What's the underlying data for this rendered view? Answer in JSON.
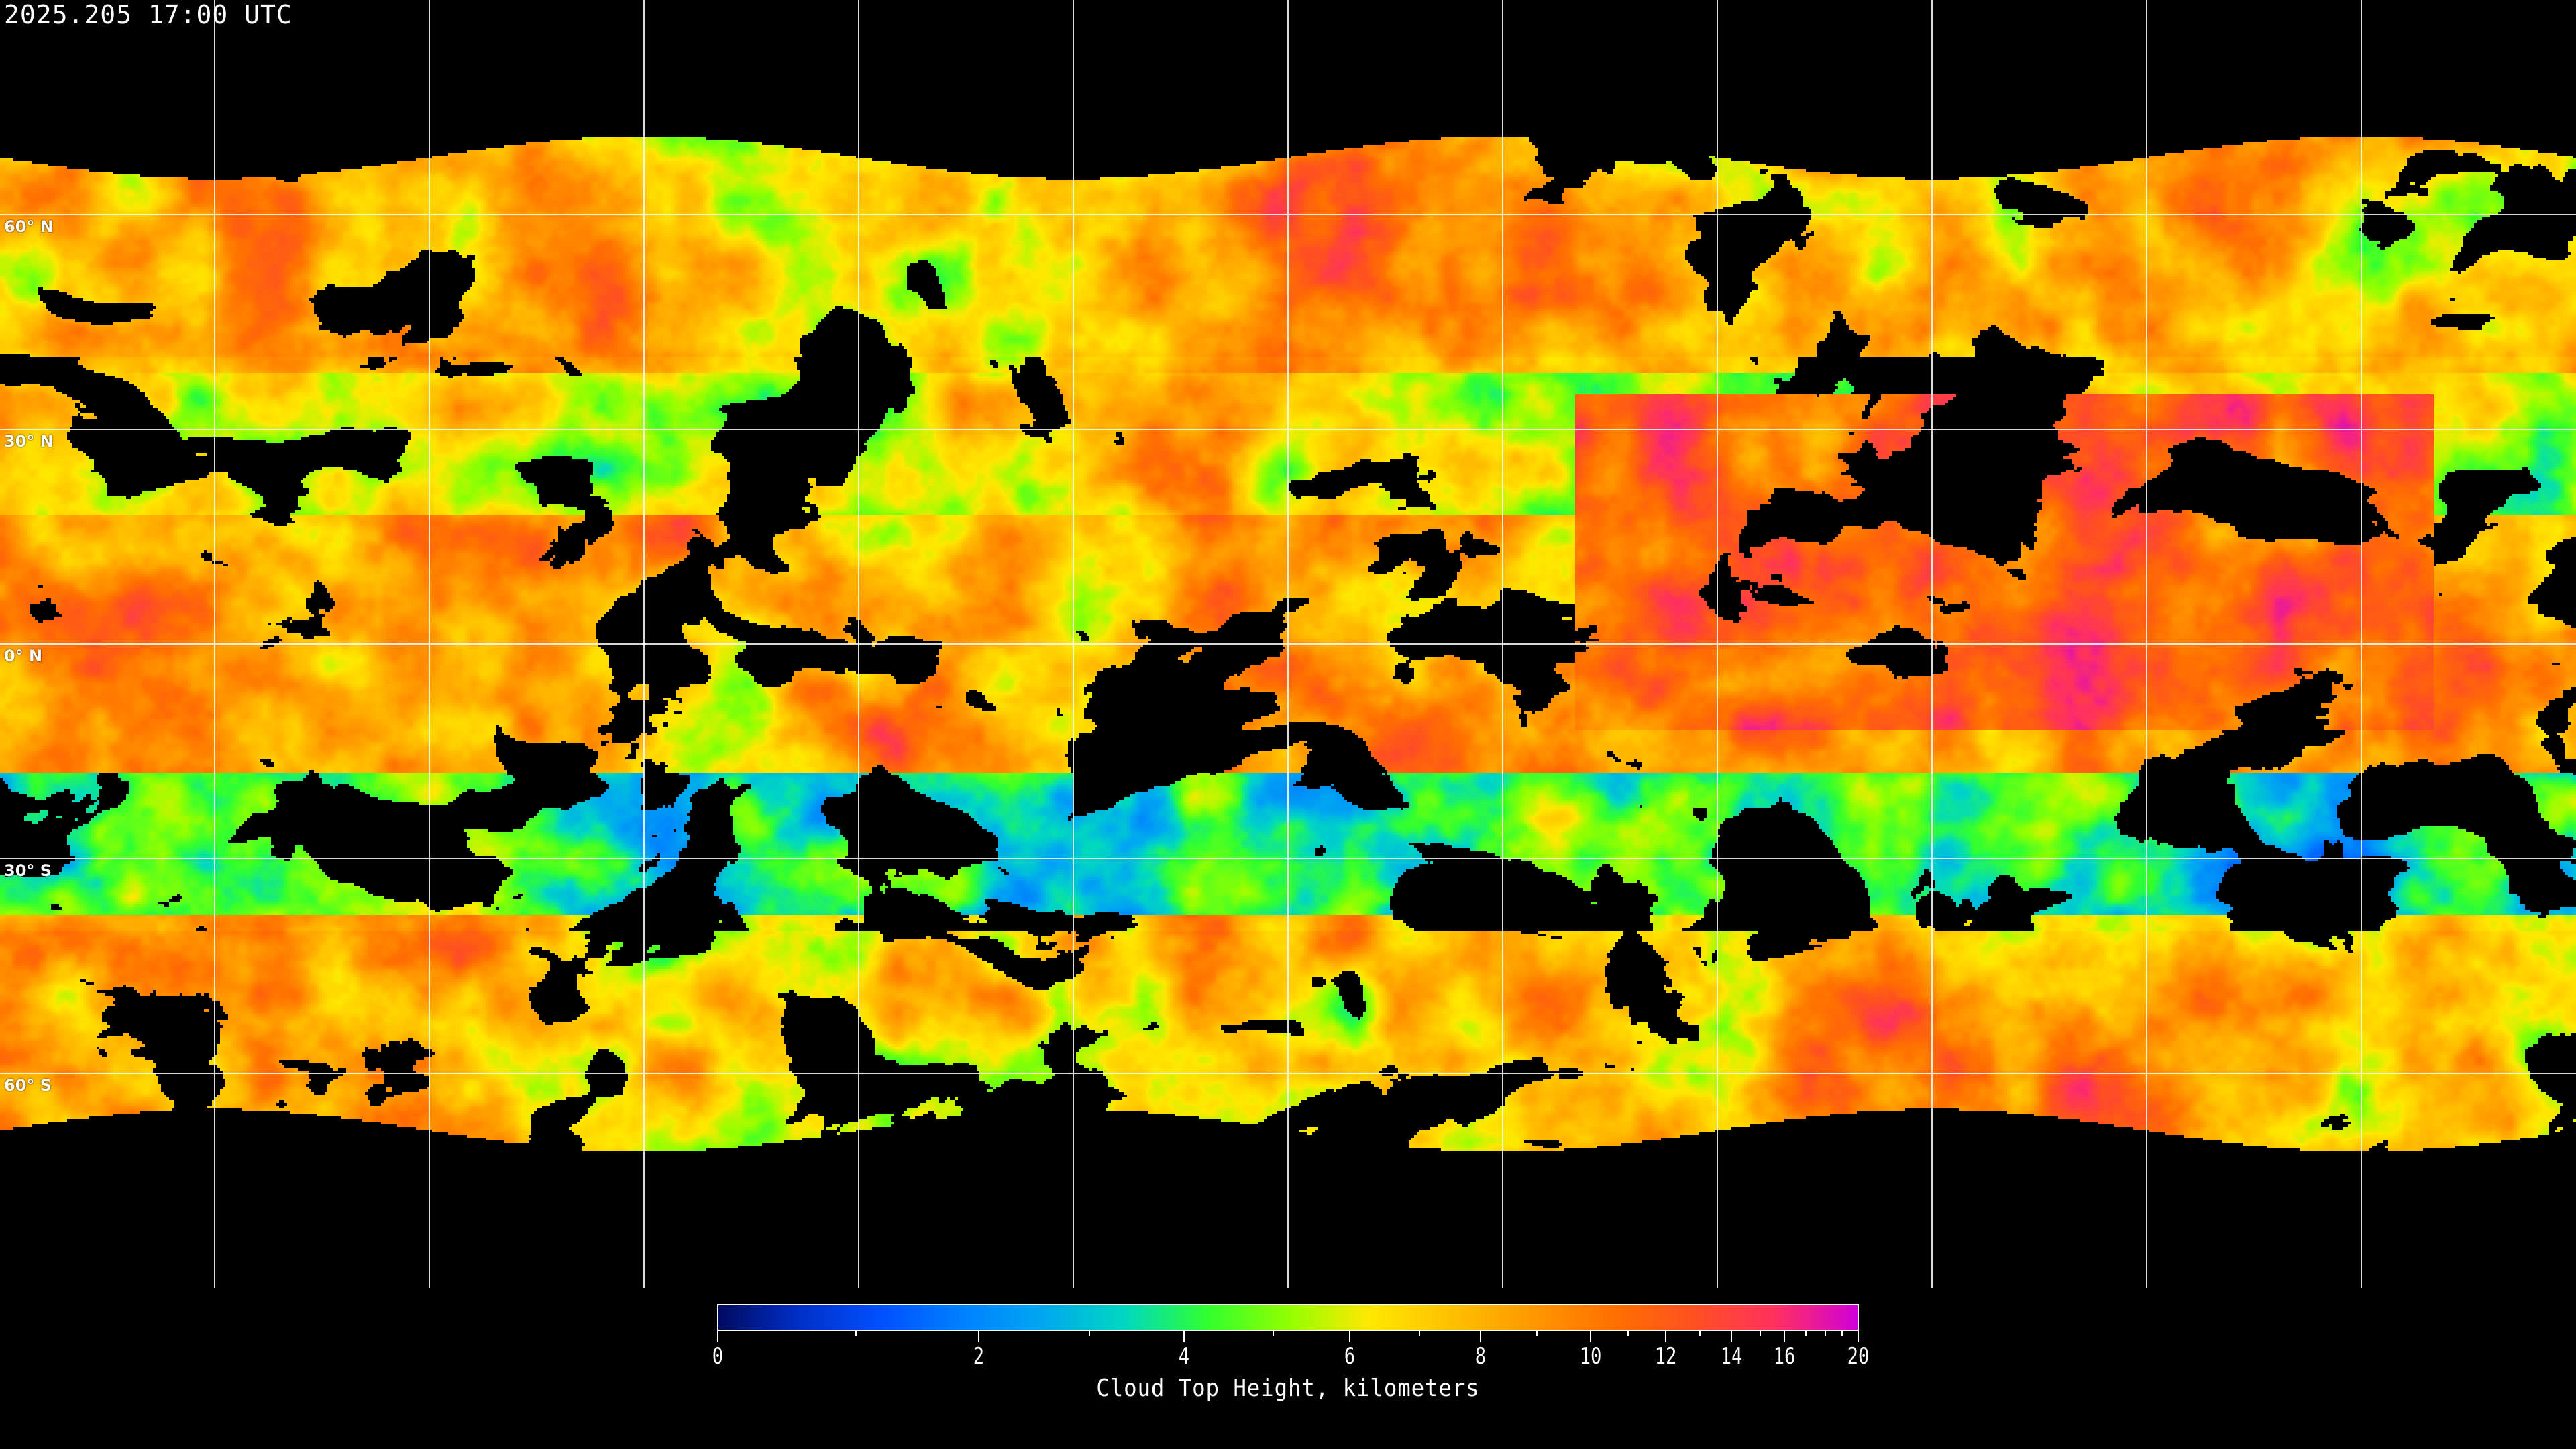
{
  "title": "2025.205 17:00 UTC",
  "map": {
    "projection": "equirectangular",
    "lon_range": [
      -180,
      180
    ],
    "lat_range": [
      -90,
      90
    ],
    "meridians_deg": [
      -150,
      -120,
      -90,
      -60,
      -30,
      0,
      30,
      60,
      90,
      120,
      150
    ],
    "parallels": [
      {
        "lat": 60,
        "label": "60° N"
      },
      {
        "lat": 30,
        "label": "30° N"
      },
      {
        "lat": 0,
        "label": "0° N"
      },
      {
        "lat": -30,
        "label": "30° S"
      },
      {
        "lat": -60,
        "label": "60° S"
      }
    ],
    "grid_color": "#ffffff",
    "clear_sky_color": "#000000",
    "coastline_color": "#ffffff"
  },
  "colorbar": {
    "label": "Cloud Top Height, kilometers",
    "range": [
      0,
      20
    ],
    "major_ticks": [
      "0",
      "2",
      "4",
      "6",
      "8",
      "10",
      "12",
      "14",
      "16",
      "20"
    ],
    "minor_ticks": [
      1,
      3,
      5,
      7,
      9,
      11,
      13,
      15,
      17,
      18,
      19
    ],
    "colors": [
      "#000a60",
      "#0030c8",
      "#0050ff",
      "#0080ff",
      "#00a8f0",
      "#00d8c0",
      "#30ff30",
      "#90ff00",
      "#ffe800",
      "#ffc000",
      "#ff9800",
      "#ff7000",
      "#ff5020",
      "#ff3060",
      "#d000d8"
    ]
  }
}
